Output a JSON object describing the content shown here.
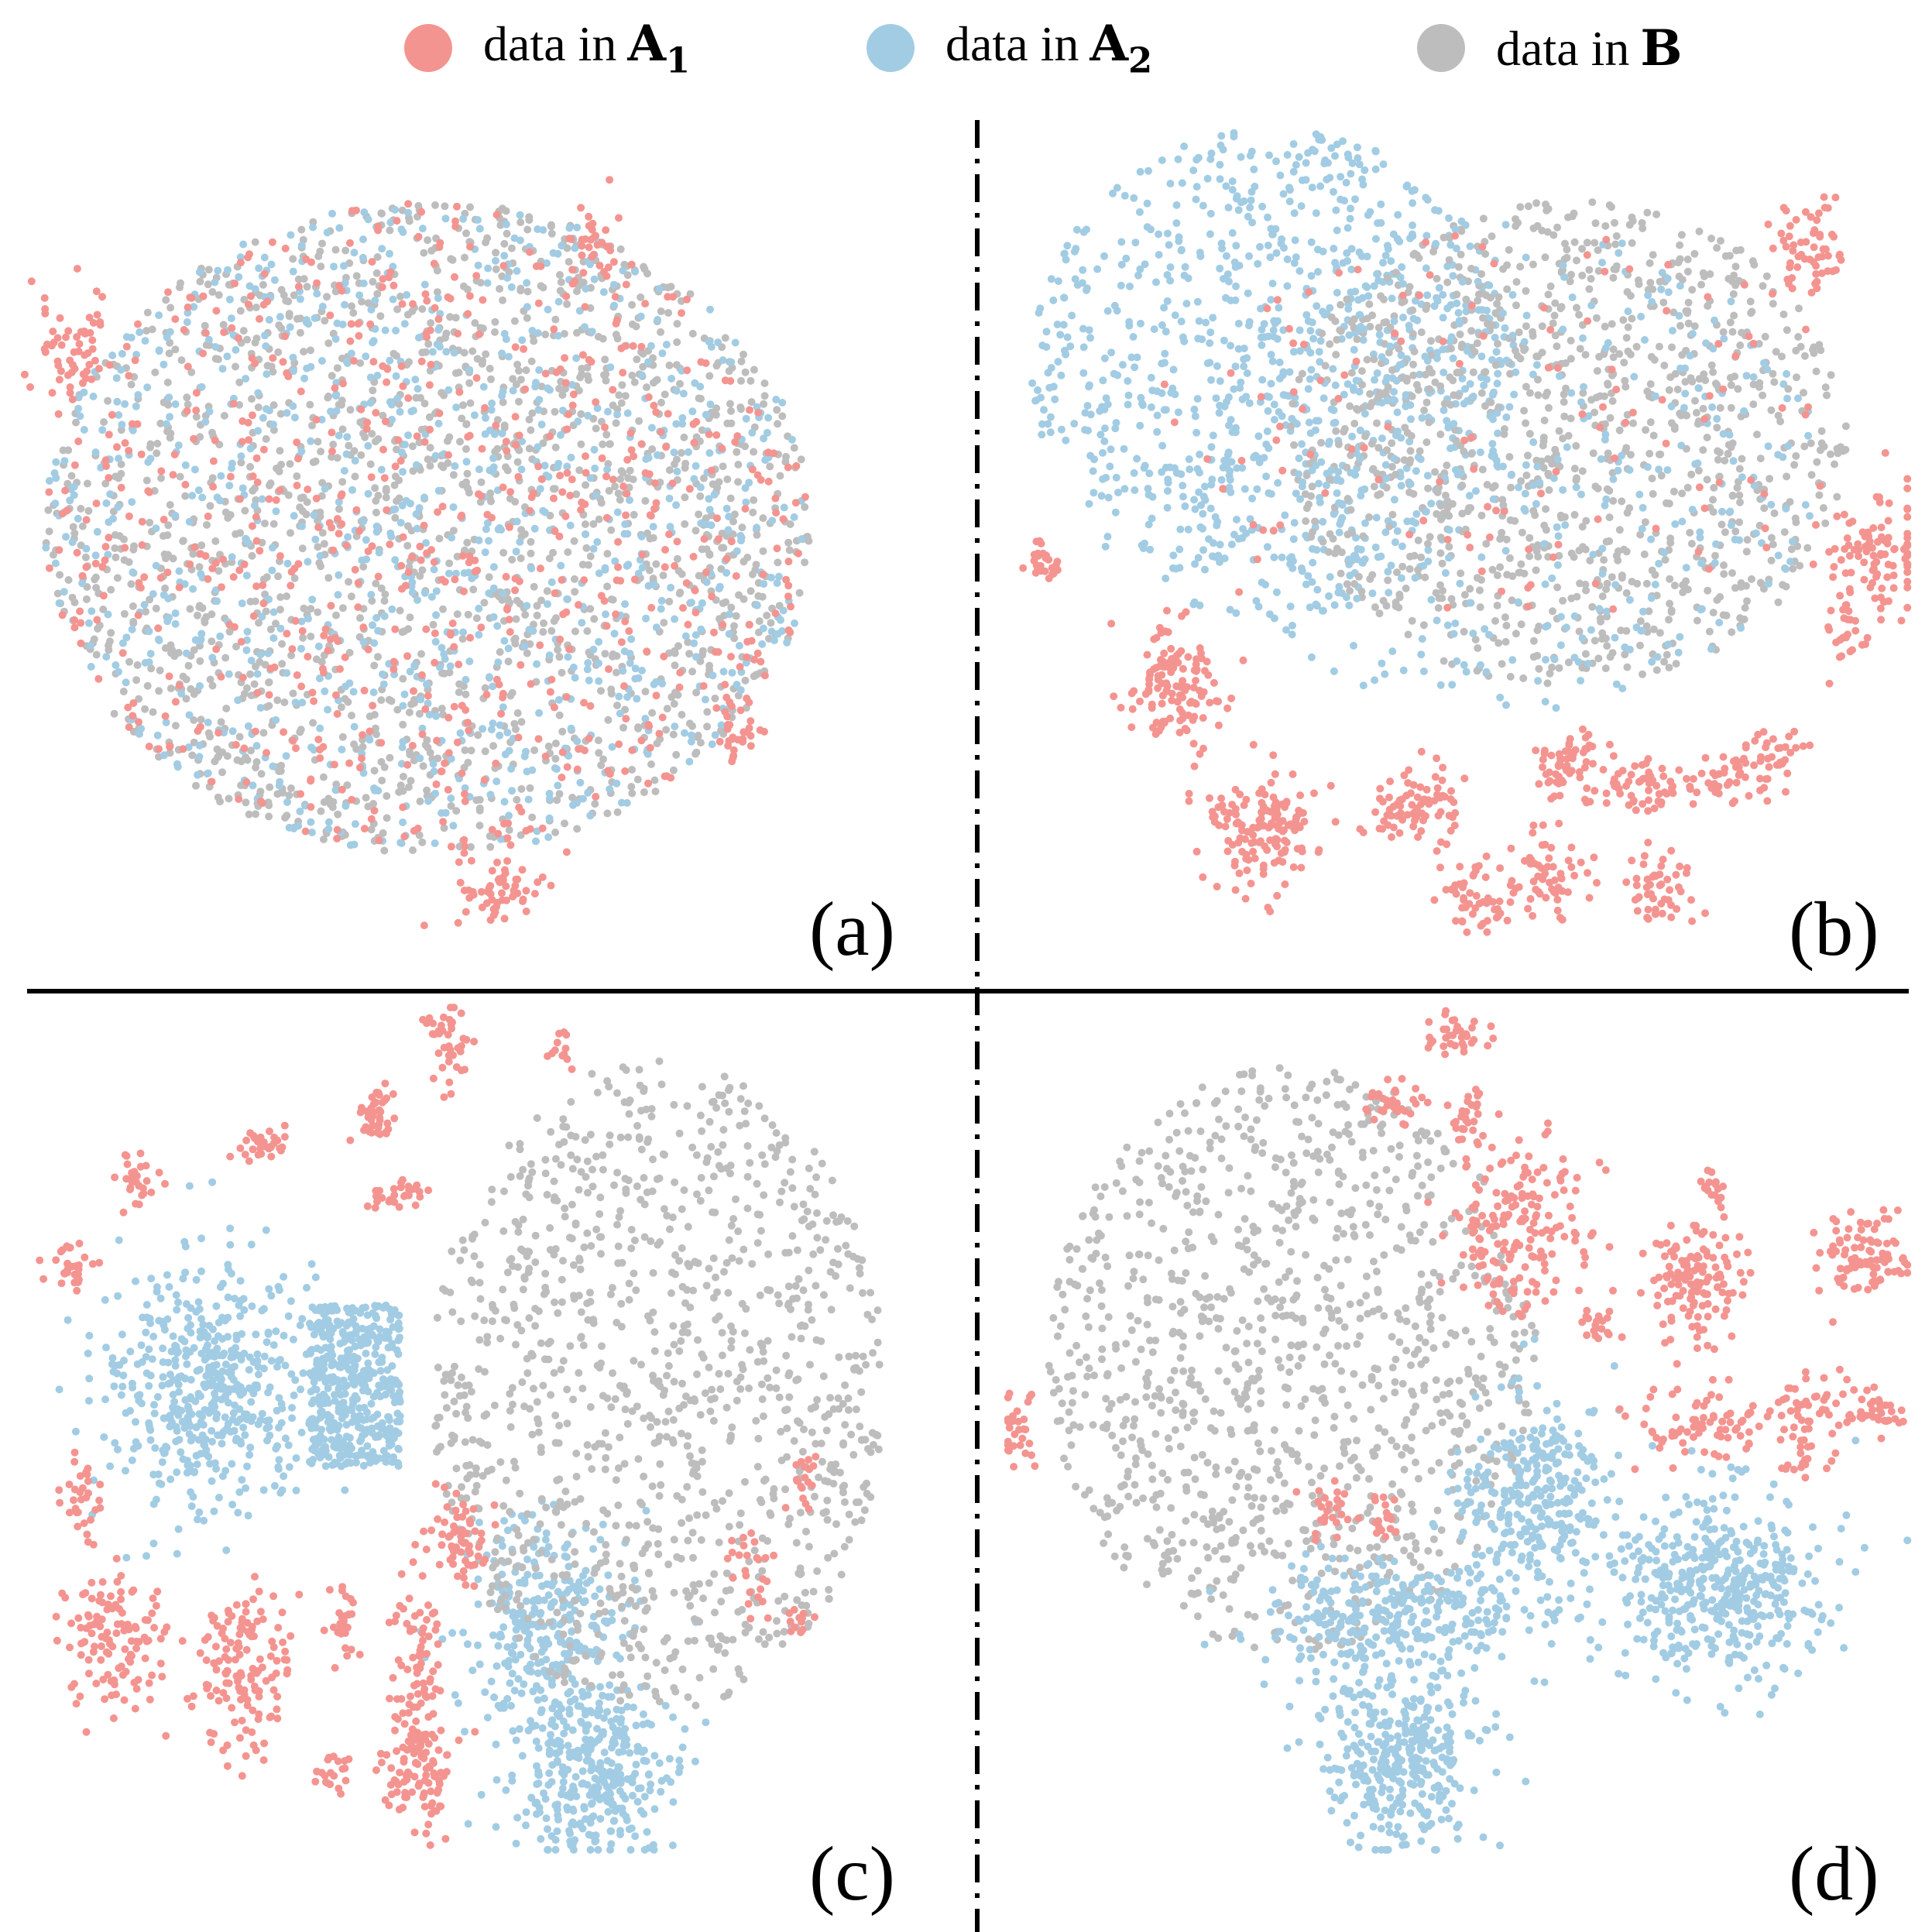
{
  "legend": [
    {
      "prefix": "data in",
      "symbol": "A",
      "subscript": "1",
      "color": "#f49490"
    },
    {
      "prefix": "data in",
      "symbol": "A",
      "subscript": "2",
      "color": "#a2cce3"
    },
    {
      "prefix": "data in",
      "symbol": "B",
      "subscript": "",
      "color": "#bdbdbd"
    }
  ],
  "chart_data": {
    "type": "scatter",
    "grid": false,
    "axes_visible": false,
    "legend_position": "top",
    "series": [
      {
        "name": "data in A1",
        "color": "#f49490"
      },
      {
        "name": "data in A2",
        "color": "#a2cce3"
      },
      {
        "name": "data in B",
        "color": "#bdbdbd"
      }
    ],
    "panels": [
      {
        "label": "(a)",
        "description_points": "fully mixed cloud",
        "clusters": [
          {
            "series": 2,
            "x": 0.45,
            "y": 0.52,
            "sx": 0.22,
            "sy": 0.2,
            "n": 1700,
            "shape": "blob"
          },
          {
            "series": 1,
            "x": 0.45,
            "y": 0.52,
            "sx": 0.22,
            "sy": 0.2,
            "n": 1000,
            "shape": "blob"
          },
          {
            "series": 0,
            "x": 0.45,
            "y": 0.52,
            "sx": 0.22,
            "sy": 0.2,
            "n": 700,
            "shape": "blob"
          },
          {
            "series": 0,
            "x": 0.06,
            "y": 0.32,
            "sx": 0.025,
            "sy": 0.04,
            "n": 60
          },
          {
            "series": 0,
            "x": 0.53,
            "y": 0.94,
            "sx": 0.025,
            "sy": 0.02,
            "n": 60
          },
          {
            "series": 0,
            "x": 0.79,
            "y": 0.76,
            "sx": 0.015,
            "sy": 0.02,
            "n": 30
          },
          {
            "series": 0,
            "x": 0.63,
            "y": 0.2,
            "sx": 0.01,
            "sy": 0.05,
            "n": 30
          }
        ]
      },
      {
        "label": "(b)",
        "description_points": "partially separated",
        "clusters": [
          {
            "series": 1,
            "x": 0.3,
            "y": 0.34,
            "sx": 0.14,
            "sy": 0.15,
            "n": 900,
            "shape": "blob"
          },
          {
            "series": 2,
            "x": 0.62,
            "y": 0.42,
            "sx": 0.16,
            "sy": 0.15,
            "n": 1100,
            "shape": "blob"
          },
          {
            "series": 1,
            "x": 0.55,
            "y": 0.45,
            "sx": 0.18,
            "sy": 0.15,
            "n": 400,
            "shape": "blob"
          },
          {
            "series": 0,
            "x": 0.55,
            "y": 0.4,
            "sx": 0.2,
            "sy": 0.12,
            "n": 120,
            "shape": "blob"
          },
          {
            "series": 0,
            "x": 0.19,
            "y": 0.7,
            "sx": 0.028,
            "sy": 0.035,
            "n": 130
          },
          {
            "series": 0,
            "x": 0.29,
            "y": 0.87,
            "sx": 0.03,
            "sy": 0.035,
            "n": 150
          },
          {
            "series": 0,
            "x": 0.45,
            "y": 0.84,
            "sx": 0.025,
            "sy": 0.025,
            "n": 80
          },
          {
            "series": 0,
            "x": 0.52,
            "y": 0.95,
            "sx": 0.02,
            "sy": 0.02,
            "n": 50
          },
          {
            "series": 0,
            "x": 0.6,
            "y": 0.92,
            "sx": 0.02,
            "sy": 0.025,
            "n": 60
          },
          {
            "series": 0,
            "x": 0.62,
            "y": 0.8,
            "sx": 0.02,
            "sy": 0.02,
            "n": 60
          },
          {
            "series": 0,
            "x": 0.71,
            "y": 0.82,
            "sx": 0.03,
            "sy": 0.015,
            "n": 60
          },
          {
            "series": 0,
            "x": 0.72,
            "y": 0.94,
            "sx": 0.02,
            "sy": 0.02,
            "n": 50
          },
          {
            "series": 0,
            "x": 0.8,
            "y": 0.81,
            "sx": 0.02,
            "sy": 0.015,
            "n": 40
          },
          {
            "series": 0,
            "x": 0.85,
            "y": 0.79,
            "sx": 0.015,
            "sy": 0.02,
            "n": 30
          },
          {
            "series": 0,
            "x": 0.96,
            "y": 0.55,
            "sx": 0.03,
            "sy": 0.04,
            "n": 100
          },
          {
            "series": 0,
            "x": 0.88,
            "y": 0.2,
            "sx": 0.02,
            "sy": 0.03,
            "n": 60
          },
          {
            "series": 0,
            "x": 0.92,
            "y": 0.64,
            "sx": 0.012,
            "sy": 0.02,
            "n": 25
          },
          {
            "series": 0,
            "x": 0.05,
            "y": 0.56,
            "sx": 0.012,
            "sy": 0.012,
            "n": 25
          }
        ]
      },
      {
        "label": "(c)",
        "description_points": "well separated",
        "clusters": [
          {
            "series": 1,
            "x": 0.21,
            "y": 0.45,
            "sx": 0.06,
            "sy": 0.07,
            "n": 500
          },
          {
            "series": 1,
            "x": 0.37,
            "y": 0.45,
            "sx": 0.045,
            "sy": 0.085,
            "n": 450,
            "shape": "rect"
          },
          {
            "series": 1,
            "x": 0.58,
            "y": 0.72,
            "sx": 0.045,
            "sy": 0.06,
            "n": 300
          },
          {
            "series": 1,
            "x": 0.63,
            "y": 0.9,
            "sx": 0.045,
            "sy": 0.05,
            "n": 350
          },
          {
            "series": 2,
            "x": 0.7,
            "y": 0.45,
            "sx": 0.13,
            "sy": 0.2,
            "n": 1100,
            "shape": "blob"
          },
          {
            "series": 0,
            "x": 0.06,
            "y": 0.31,
            "sx": 0.012,
            "sy": 0.015,
            "n": 30
          },
          {
            "series": 0,
            "x": 0.13,
            "y": 0.21,
            "sx": 0.012,
            "sy": 0.015,
            "n": 30
          },
          {
            "series": 0,
            "x": 0.27,
            "y": 0.17,
            "sx": 0.015,
            "sy": 0.01,
            "n": 30
          },
          {
            "series": 0,
            "x": 0.39,
            "y": 0.13,
            "sx": 0.012,
            "sy": 0.015,
            "n": 40
          },
          {
            "series": 0,
            "x": 0.42,
            "y": 0.23,
            "sx": 0.015,
            "sy": 0.01,
            "n": 30
          },
          {
            "series": 0,
            "x": 0.47,
            "y": 0.05,
            "sx": 0.012,
            "sy": 0.025,
            "n": 40
          },
          {
            "series": 0,
            "x": 0.59,
            "y": 0.06,
            "sx": 0.008,
            "sy": 0.01,
            "n": 12
          },
          {
            "series": 0,
            "x": 0.07,
            "y": 0.58,
            "sx": 0.01,
            "sy": 0.025,
            "n": 30
          },
          {
            "series": 0,
            "x": 0.11,
            "y": 0.75,
            "sx": 0.028,
            "sy": 0.045,
            "n": 120
          },
          {
            "series": 0,
            "x": 0.25,
            "y": 0.78,
            "sx": 0.025,
            "sy": 0.05,
            "n": 140
          },
          {
            "series": 0,
            "x": 0.36,
            "y": 0.73,
            "sx": 0.008,
            "sy": 0.025,
            "n": 30
          },
          {
            "series": 0,
            "x": 0.34,
            "y": 0.9,
            "sx": 0.012,
            "sy": 0.012,
            "n": 20
          },
          {
            "series": 0,
            "x": 0.44,
            "y": 0.78,
            "sx": 0.015,
            "sy": 0.06,
            "n": 90
          },
          {
            "series": 0,
            "x": 0.44,
            "y": 0.9,
            "sx": 0.02,
            "sy": 0.035,
            "n": 90
          },
          {
            "series": 0,
            "x": 0.48,
            "y": 0.62,
            "sx": 0.015,
            "sy": 0.03,
            "n": 60
          },
          {
            "series": 0,
            "x": 0.8,
            "y": 0.66,
            "sx": 0.01,
            "sy": 0.03,
            "n": 25
          },
          {
            "series": 0,
            "x": 0.86,
            "y": 0.56,
            "sx": 0.008,
            "sy": 0.02,
            "n": 18
          },
          {
            "series": 0,
            "x": 0.85,
            "y": 0.72,
            "sx": 0.01,
            "sy": 0.01,
            "n": 12
          }
        ]
      },
      {
        "label": "(d)",
        "description_points": "well separated",
        "clusters": [
          {
            "series": 2,
            "x": 0.32,
            "y": 0.42,
            "sx": 0.14,
            "sy": 0.18,
            "n": 1100,
            "shape": "blob"
          },
          {
            "series": 1,
            "x": 0.58,
            "y": 0.58,
            "sx": 0.04,
            "sy": 0.06,
            "n": 300
          },
          {
            "series": 1,
            "x": 0.43,
            "y": 0.72,
            "sx": 0.07,
            "sy": 0.035,
            "n": 300
          },
          {
            "series": 1,
            "x": 0.44,
            "y": 0.88,
            "sx": 0.045,
            "sy": 0.05,
            "n": 350
          },
          {
            "series": 1,
            "x": 0.78,
            "y": 0.68,
            "sx": 0.06,
            "sy": 0.055,
            "n": 450
          },
          {
            "series": 0,
            "x": 0.5,
            "y": 0.04,
            "sx": 0.015,
            "sy": 0.012,
            "n": 35
          },
          {
            "series": 0,
            "x": 0.43,
            "y": 0.12,
            "sx": 0.018,
            "sy": 0.012,
            "n": 35
          },
          {
            "series": 0,
            "x": 0.51,
            "y": 0.14,
            "sx": 0.012,
            "sy": 0.015,
            "n": 30
          },
          {
            "series": 0,
            "x": 0.57,
            "y": 0.27,
            "sx": 0.04,
            "sy": 0.05,
            "n": 180
          },
          {
            "series": 0,
            "x": 0.76,
            "y": 0.33,
            "sx": 0.025,
            "sy": 0.04,
            "n": 130
          },
          {
            "series": 0,
            "x": 0.94,
            "y": 0.3,
            "sx": 0.025,
            "sy": 0.025,
            "n": 90
          },
          {
            "series": 0,
            "x": 0.78,
            "y": 0.22,
            "sx": 0.01,
            "sy": 0.01,
            "n": 14
          },
          {
            "series": 0,
            "x": 0.65,
            "y": 0.38,
            "sx": 0.012,
            "sy": 0.01,
            "n": 18
          },
          {
            "series": 0,
            "x": 0.76,
            "y": 0.49,
            "sx": 0.045,
            "sy": 0.02,
            "n": 80
          },
          {
            "series": 0,
            "x": 0.89,
            "y": 0.47,
            "sx": 0.025,
            "sy": 0.015,
            "n": 40
          },
          {
            "series": 0,
            "x": 0.96,
            "y": 0.48,
            "sx": 0.015,
            "sy": 0.015,
            "n": 30
          },
          {
            "series": 0,
            "x": 0.88,
            "y": 0.53,
            "sx": 0.015,
            "sy": 0.012,
            "n": 25
          },
          {
            "series": 0,
            "x": 0.02,
            "y": 0.5,
            "sx": 0.012,
            "sy": 0.025,
            "n": 30
          },
          {
            "series": 0,
            "x": 0.36,
            "y": 0.6,
            "sx": 0.015,
            "sy": 0.015,
            "n": 25
          },
          {
            "series": 0,
            "x": 0.42,
            "y": 0.6,
            "sx": 0.01,
            "sy": 0.02,
            "n": 18
          }
        ]
      }
    ]
  }
}
